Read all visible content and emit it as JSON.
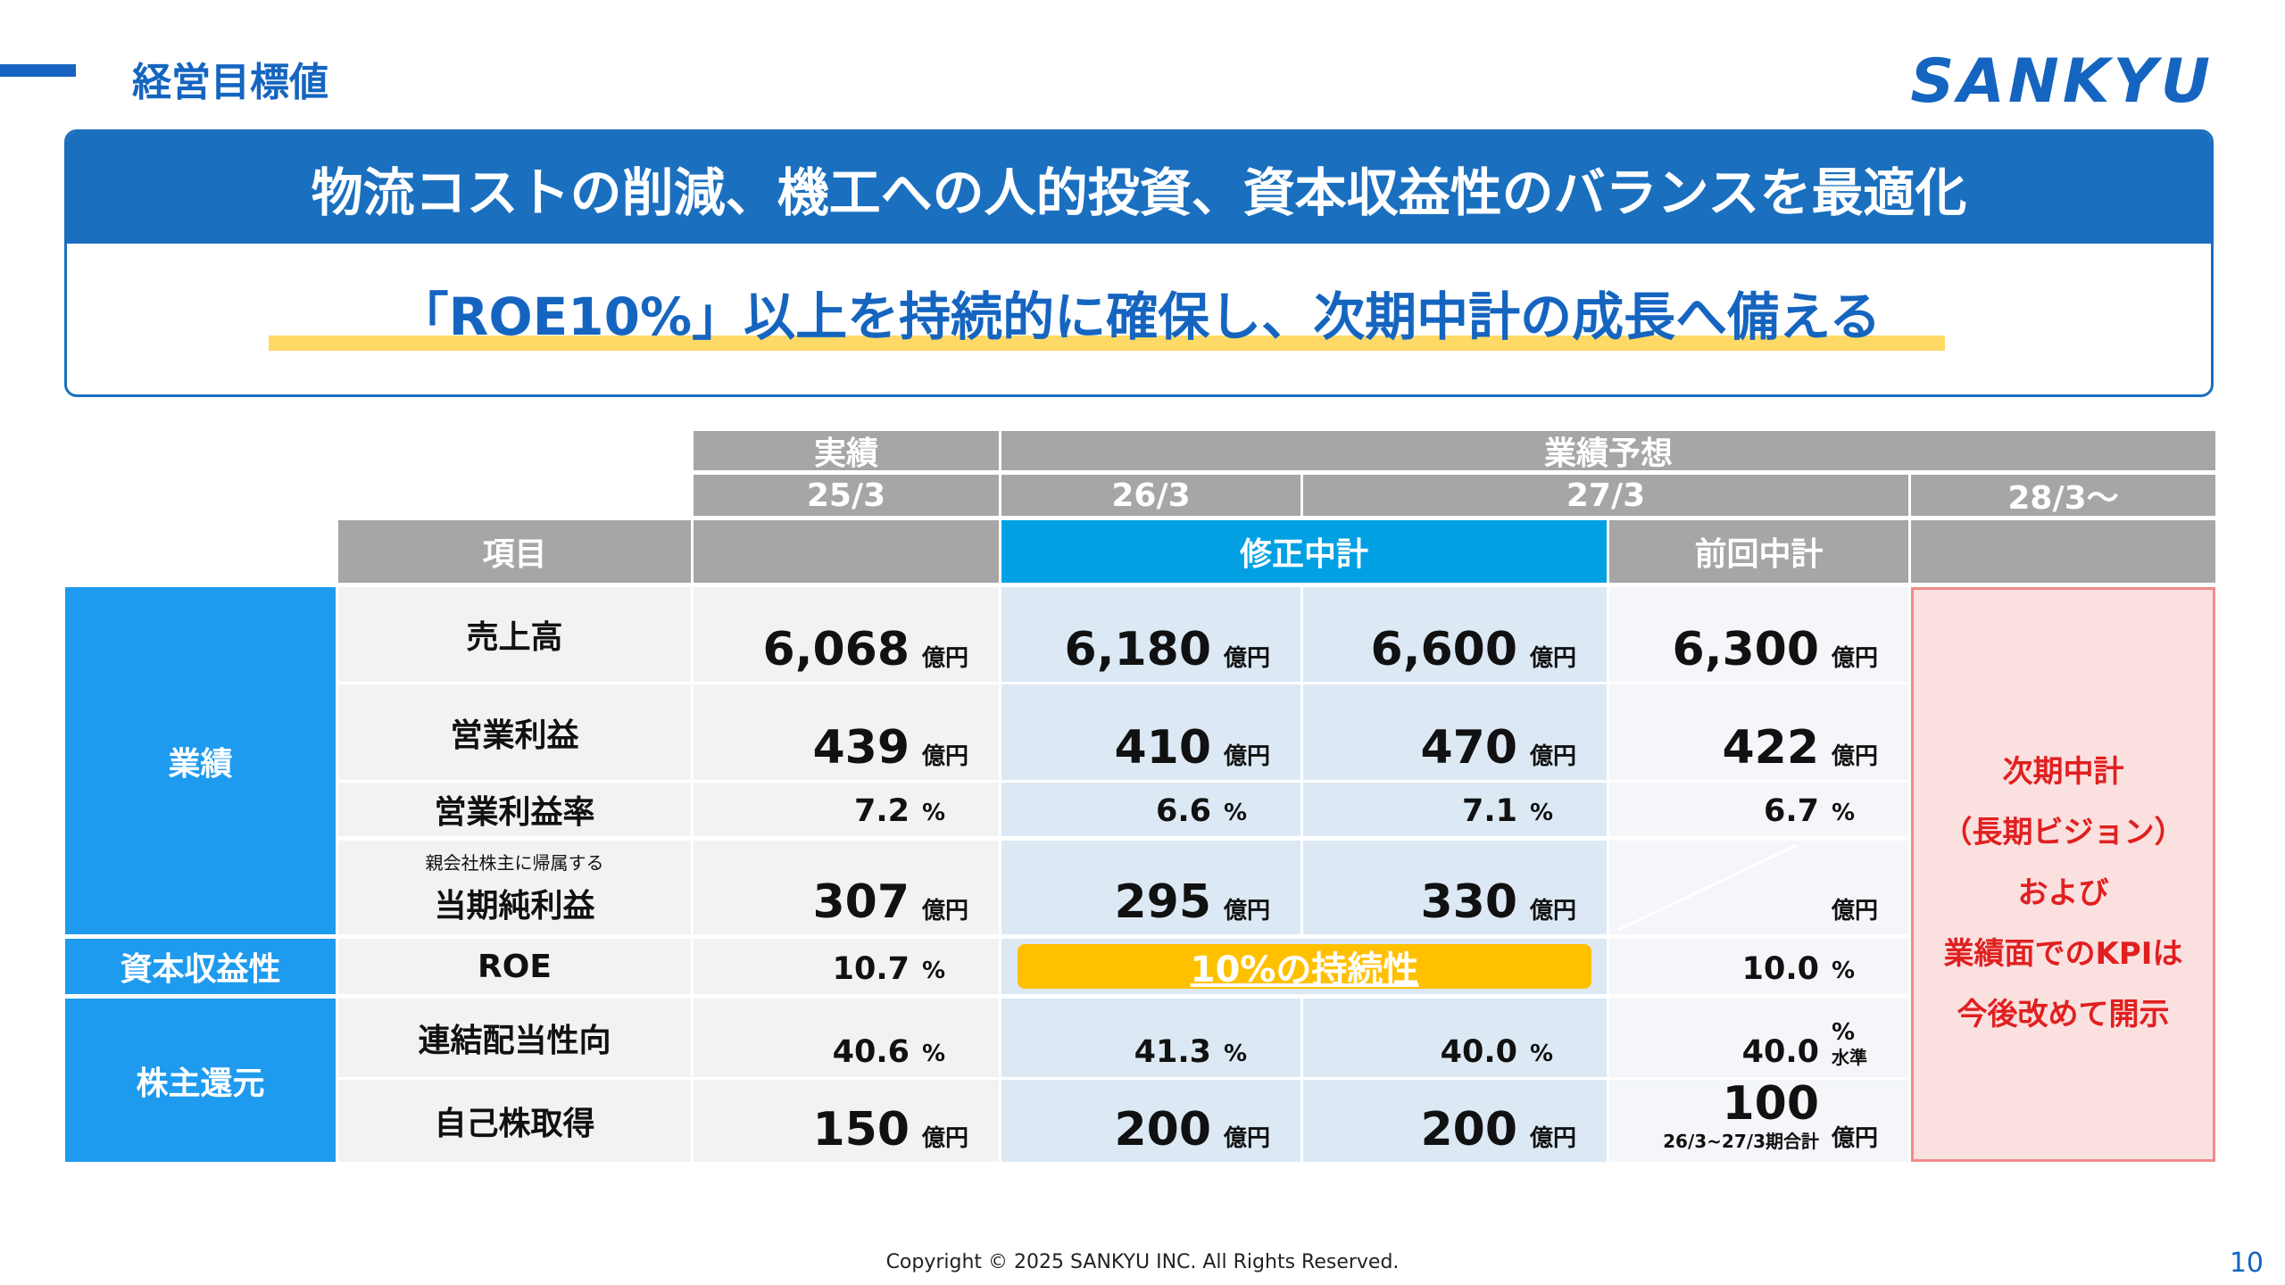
{
  "header": {
    "title": "経営目標値",
    "logo": "SANKYU"
  },
  "banner": {
    "headline": "物流コストの削減、機工への人的投資、資本収益性のバランスを最適化",
    "message": "「ROE10%」以上を持続的に確保し、次期中計の成長へ備える"
  },
  "table": {
    "column_groups": [
      "実績",
      "業績予想"
    ],
    "periods": [
      "25/3",
      "26/3",
      "27/3",
      "28/3～"
    ],
    "item_header": "項目",
    "plan_headers": [
      "修正中計",
      "前回中計"
    ],
    "groups": [
      "業績",
      "資本収益性",
      "株主還元"
    ],
    "rows": [
      {
        "label": "売上高",
        "actual": {
          "value": "6,068",
          "unit": "億円"
        },
        "revised": [
          {
            "value": "6,180",
            "unit": "億円"
          },
          {
            "value": "6,600",
            "unit": "億円"
          }
        ],
        "previous": {
          "value": "6,300",
          "unit": "億円"
        }
      },
      {
        "label": "営業利益",
        "actual": {
          "value": "439",
          "unit": "億円"
        },
        "revised": [
          {
            "value": "410",
            "unit": "億円"
          },
          {
            "value": "470",
            "unit": "億円"
          }
        ],
        "previous": {
          "value": "422",
          "unit": "億円"
        }
      },
      {
        "label": "営業利益率",
        "actual": {
          "value": "7.2",
          "unit": "%"
        },
        "revised": [
          {
            "value": "6.6",
            "unit": "%"
          },
          {
            "value": "7.1",
            "unit": "%"
          }
        ],
        "previous": {
          "value": "6.7",
          "unit": "%"
        }
      },
      {
        "note": "親会社株主に帰属する",
        "label": "当期純利益",
        "actual": {
          "value": "307",
          "unit": "億円"
        },
        "revised": [
          {
            "value": "295",
            "unit": "億円"
          },
          {
            "value": "330",
            "unit": "億円"
          }
        ],
        "previous": {
          "unit": "億円"
        }
      },
      {
        "label": "ROE",
        "actual": {
          "value": "10.7",
          "unit": "%"
        },
        "revised": {
          "text": "10%の持続性"
        },
        "previous": {
          "value": "10.0",
          "unit": "%"
        }
      },
      {
        "label": "連結配当性向",
        "actual": {
          "value": "40.6",
          "unit": "%"
        },
        "revised": [
          {
            "value": "41.3",
            "unit": "%"
          },
          {
            "value": "40.0",
            "unit": "%"
          }
        ],
        "previous": {
          "value": "40.0",
          "unit": "%",
          "qualifier": "水準"
        }
      },
      {
        "label": "自己株取得",
        "actual": {
          "value": "150",
          "unit": "億円"
        },
        "revised": [
          {
            "value": "200",
            "unit": "億円"
          },
          {
            "value": "200",
            "unit": "億円"
          }
        ],
        "previous": {
          "value": "100",
          "unit": "億円",
          "qualifier": "26/3~27/3期合計"
        }
      }
    ],
    "outlook": [
      "次期中計",
      "（長期ビジョン）",
      "および",
      "業績面でのKPIは",
      "今後改めて開示"
    ]
  },
  "footer": {
    "copyright": "Copyright © 2025 SANKYU INC. All Rights Reserved.",
    "page": "10"
  }
}
